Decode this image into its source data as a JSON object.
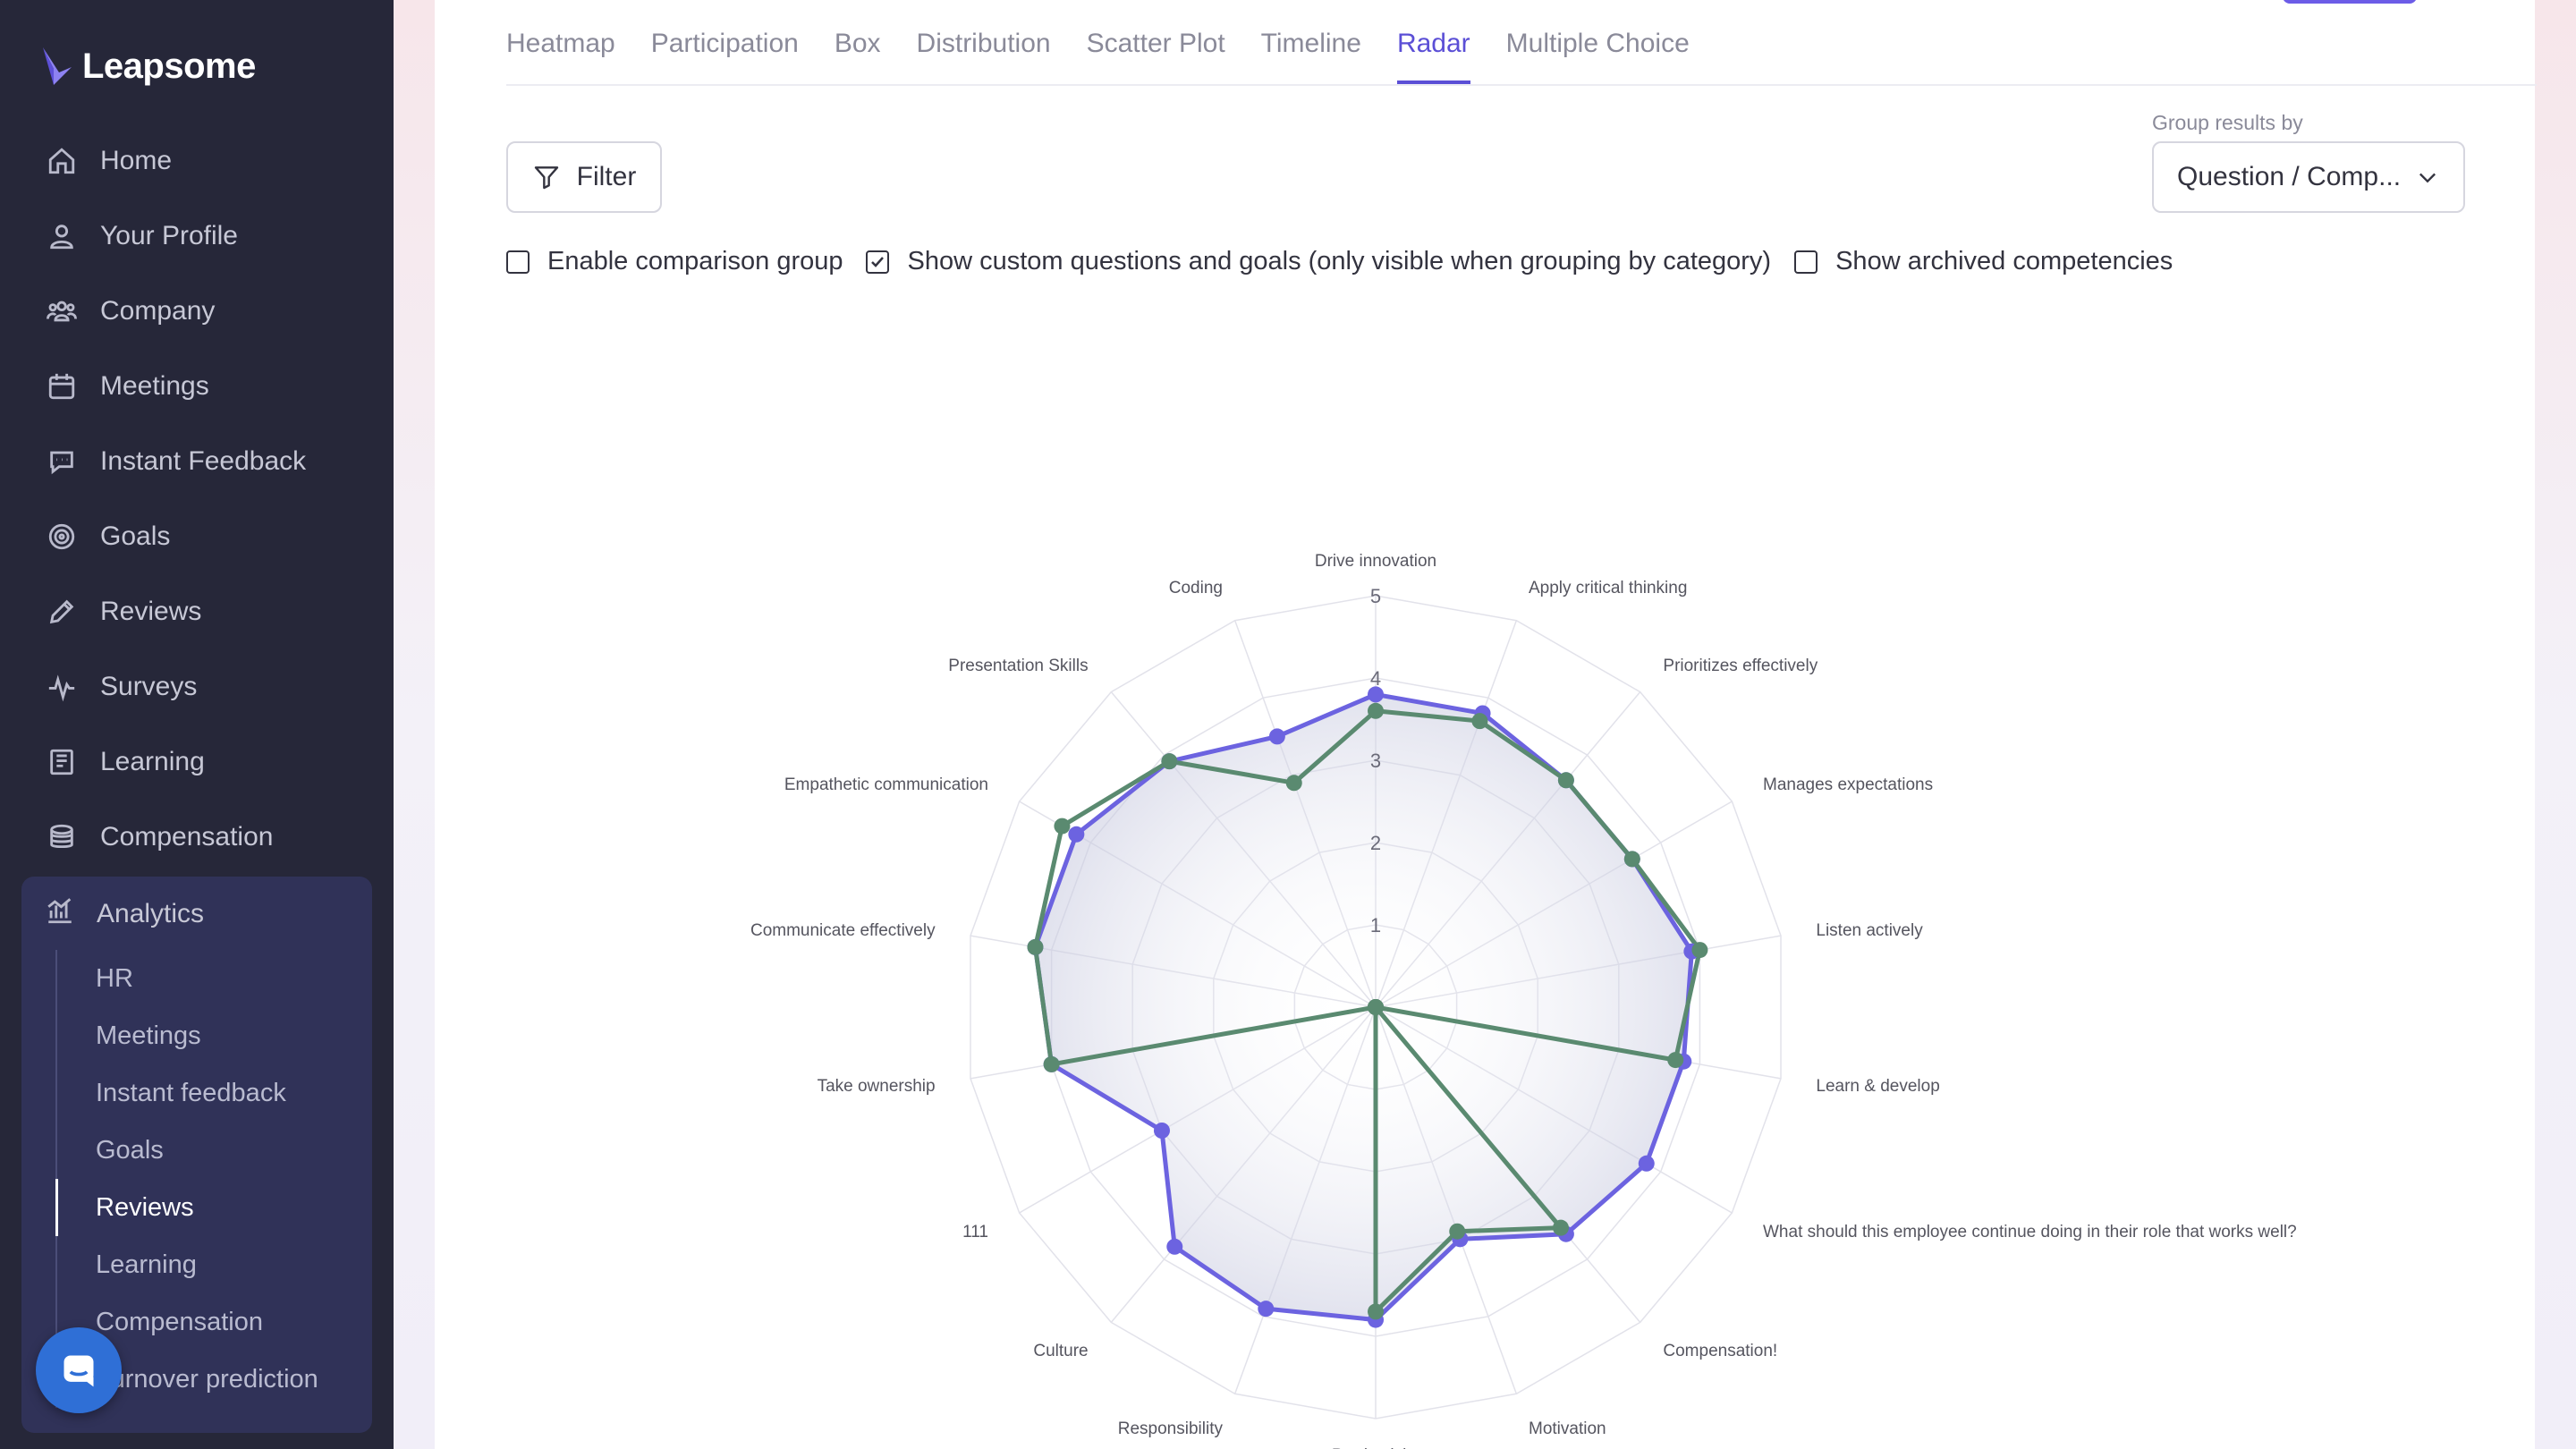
{
  "brand": {
    "name": "Leapsome"
  },
  "sidebar": {
    "items": [
      {
        "label": "Home",
        "icon": "home-icon"
      },
      {
        "label": "Your Profile",
        "icon": "user-icon"
      },
      {
        "label": "Company",
        "icon": "users-icon"
      },
      {
        "label": "Meetings",
        "icon": "calendar-icon"
      },
      {
        "label": "Instant Feedback",
        "icon": "chat-icon"
      },
      {
        "label": "Goals",
        "icon": "target-icon"
      },
      {
        "label": "Reviews",
        "icon": "pencil-icon"
      },
      {
        "label": "Surveys",
        "icon": "pulse-icon"
      },
      {
        "label": "Learning",
        "icon": "book-icon"
      },
      {
        "label": "Compensation",
        "icon": "coins-icon"
      }
    ],
    "analytics": {
      "label": "Analytics",
      "icon": "bar-chart-icon",
      "subitems": [
        "HR",
        "Meetings",
        "Instant feedback",
        "Goals",
        "Reviews",
        "Learning",
        "Compensation",
        "Turnover prediction"
      ],
      "active": "Reviews"
    }
  },
  "tabs": {
    "items": [
      "Heatmap",
      "Participation",
      "Box",
      "Distribution",
      "Scatter Plot",
      "Timeline",
      "Radar",
      "Multiple Choice"
    ],
    "active": "Radar"
  },
  "toolbar": {
    "filter_label": "Filter",
    "group_by_label": "Group results by",
    "group_by_value": "Question / Comp..."
  },
  "options": {
    "comparison_label": "Enable comparison group",
    "comparison_checked": false,
    "custom_label": "Show custom questions and goals (only visible when grouping by category)",
    "custom_checked": true,
    "archived_label": "Show archived competencies",
    "archived_checked": false
  },
  "colors": {
    "accent": "#5b4fd6",
    "series_a": "#6c63e0",
    "series_b": "#5a8a70",
    "sidebar_bg": "#262739"
  },
  "chart_data": {
    "type": "radar",
    "rmax": 5,
    "tick_labels": [
      "1",
      "2",
      "3",
      "4",
      "5"
    ],
    "categories": [
      "Drive innovation",
      "Apply critical thinking",
      "Prioritizes effectively",
      "Manages expectations",
      "Listen actively",
      "Learn & develop",
      "What should this employee continue doing in their role that works well?",
      "Compensation!",
      "Motivation",
      "Productivity",
      "Responsibility",
      "Culture",
      "111",
      "Take ownership",
      "Communicate effectively",
      "Empathetic communication",
      "Presentation Skills",
      "Coding"
    ],
    "series": [
      {
        "values": [
          3.8,
          3.8,
          3.6,
          3.6,
          3.9,
          3.8,
          3.8,
          3.6,
          3.0,
          3.8,
          3.9,
          3.8,
          3.0,
          4.0,
          4.2,
          4.2,
          3.9,
          3.5
        ]
      },
      {
        "values": [
          3.6,
          3.7,
          3.6,
          3.6,
          4.0,
          3.7,
          0,
          3.5,
          2.9,
          3.7,
          0,
          0,
          0,
          4.0,
          4.2,
          4.4,
          3.9,
          2.9
        ]
      }
    ]
  }
}
